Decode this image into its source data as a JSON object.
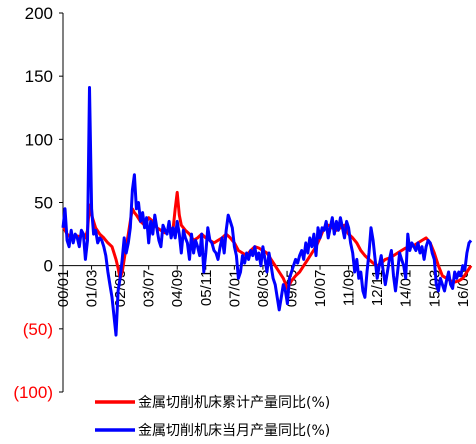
{
  "chart_data": {
    "type": "line",
    "title": "",
    "xlabel": "",
    "ylabel": "",
    "ylim": [
      -100,
      200
    ],
    "yticks": [
      {
        "value": 200,
        "label": "200"
      },
      {
        "value": 150,
        "label": "150"
      },
      {
        "value": 100,
        "label": "100"
      },
      {
        "value": 50,
        "label": "50"
      },
      {
        "value": 0,
        "label": "0"
      },
      {
        "value": -50,
        "label": "(50)"
      },
      {
        "value": -100,
        "label": "(100)"
      }
    ],
    "xticks": [
      "00/01",
      "01/03",
      "02/05",
      "03/07",
      "04/09",
      "05/11",
      "07/01",
      "08/03",
      "09/05",
      "10/07",
      "11/09",
      "12/11",
      "14/01",
      "15/03",
      "16/05"
    ],
    "xtick_index": [
      0,
      14,
      28,
      42,
      56,
      70,
      84,
      98,
      112,
      126,
      140,
      154,
      168,
      182,
      196
    ],
    "colors": {
      "negative_tick": "#ff0000",
      "positive_tick": "#000000"
    },
    "series": [
      {
        "name": "金属切削机床累计产量同比(%)",
        "color": "#ff0000",
        "points": [
          [
            0,
            32
          ],
          [
            1,
            28
          ],
          [
            2,
            25
          ],
          [
            4,
            22
          ],
          [
            6,
            24
          ],
          [
            8,
            23
          ],
          [
            10,
            25
          ],
          [
            11,
            22
          ],
          [
            12,
            28
          ],
          [
            13,
            48
          ],
          [
            14,
            40
          ],
          [
            15,
            35
          ],
          [
            16,
            30
          ],
          [
            18,
            25
          ],
          [
            20,
            22
          ],
          [
            22,
            18
          ],
          [
            24,
            15
          ],
          [
            25,
            10
          ],
          [
            26,
            5
          ],
          [
            27,
            -2
          ],
          [
            28,
            -10
          ],
          [
            29,
            -5
          ],
          [
            30,
            5
          ],
          [
            31,
            15
          ],
          [
            32,
            25
          ],
          [
            33,
            35
          ],
          [
            34,
            45
          ],
          [
            35,
            42
          ],
          [
            36,
            40
          ],
          [
            38,
            35
          ],
          [
            40,
            32
          ],
          [
            42,
            38
          ],
          [
            44,
            35
          ],
          [
            46,
            30
          ],
          [
            48,
            28
          ],
          [
            50,
            26
          ],
          [
            52,
            28
          ],
          [
            54,
            30
          ],
          [
            55,
            45
          ],
          [
            56,
            58
          ],
          [
            57,
            40
          ],
          [
            58,
            32
          ],
          [
            60,
            28
          ],
          [
            62,
            25
          ],
          [
            64,
            20
          ],
          [
            66,
            22
          ],
          [
            68,
            25
          ],
          [
            70,
            22
          ],
          [
            72,
            20
          ],
          [
            74,
            18
          ],
          [
            76,
            20
          ],
          [
            78,
            22
          ],
          [
            80,
            25
          ],
          [
            82,
            22
          ],
          [
            84,
            18
          ],
          [
            86,
            12
          ],
          [
            88,
            10
          ],
          [
            90,
            8
          ],
          [
            92,
            12
          ],
          [
            94,
            15
          ],
          [
            96,
            14
          ],
          [
            98,
            12
          ],
          [
            100,
            10
          ],
          [
            102,
            5
          ],
          [
            104,
            0
          ],
          [
            106,
            -5
          ],
          [
            108,
            -10
          ],
          [
            110,
            -18
          ],
          [
            112,
            -12
          ],
          [
            114,
            -8
          ],
          [
            116,
            -5
          ],
          [
            118,
            0
          ],
          [
            120,
            5
          ],
          [
            122,
            10
          ],
          [
            124,
            15
          ],
          [
            126,
            22
          ],
          [
            128,
            30
          ],
          [
            130,
            32
          ],
          [
            132,
            30
          ],
          [
            134,
            28
          ],
          [
            136,
            30
          ],
          [
            138,
            32
          ],
          [
            140,
            25
          ],
          [
            142,
            22
          ],
          [
            144,
            18
          ],
          [
            146,
            12
          ],
          [
            148,
            8
          ],
          [
            150,
            5
          ],
          [
            152,
            2
          ],
          [
            154,
            0
          ],
          [
            156,
            2
          ],
          [
            158,
            5
          ],
          [
            160,
            6
          ],
          [
            162,
            8
          ],
          [
            164,
            10
          ],
          [
            166,
            12
          ],
          [
            168,
            14
          ],
          [
            170,
            15
          ],
          [
            172,
            16
          ],
          [
            174,
            18
          ],
          [
            176,
            20
          ],
          [
            178,
            22
          ],
          [
            180,
            18
          ],
          [
            182,
            10
          ],
          [
            184,
            0
          ],
          [
            186,
            -8
          ],
          [
            188,
            -10
          ],
          [
            190,
            -12
          ],
          [
            192,
            -13
          ],
          [
            194,
            -12
          ],
          [
            196,
            -10
          ],
          [
            198,
            -5
          ],
          [
            200,
            0
          ]
        ]
      },
      {
        "name": "金属切削机床当月产量同比(%)",
        "color": "#0000ff",
        "points": [
          [
            0,
            30
          ],
          [
            1,
            45
          ],
          [
            2,
            20
          ],
          [
            3,
            15
          ],
          [
            4,
            28
          ],
          [
            5,
            18
          ],
          [
            6,
            25
          ],
          [
            7,
            22
          ],
          [
            8,
            15
          ],
          [
            9,
            28
          ],
          [
            10,
            25
          ],
          [
            11,
            5
          ],
          [
            12,
            20
          ],
          [
            13,
            141
          ],
          [
            14,
            45
          ],
          [
            15,
            25
          ],
          [
            16,
            28
          ],
          [
            17,
            18
          ],
          [
            18,
            22
          ],
          [
            19,
            20
          ],
          [
            20,
            15
          ],
          [
            21,
            8
          ],
          [
            22,
            -5
          ],
          [
            23,
            -15
          ],
          [
            24,
            -25
          ],
          [
            25,
            -40
          ],
          [
            26,
            -55
          ],
          [
            27,
            -20
          ],
          [
            28,
            -10
          ],
          [
            29,
            5
          ],
          [
            30,
            22
          ],
          [
            31,
            10
          ],
          [
            32,
            18
          ],
          [
            33,
            30
          ],
          [
            34,
            60
          ],
          [
            35,
            72
          ],
          [
            36,
            45
          ],
          [
            37,
            50
          ],
          [
            38,
            35
          ],
          [
            39,
            42
          ],
          [
            40,
            30
          ],
          [
            41,
            38
          ],
          [
            42,
            18
          ],
          [
            43,
            35
          ],
          [
            44,
            25
          ],
          [
            45,
            40
          ],
          [
            46,
            30
          ],
          [
            47,
            20
          ],
          [
            48,
            15
          ],
          [
            49,
            32
          ],
          [
            50,
            28
          ],
          [
            51,
            25
          ],
          [
            52,
            35
          ],
          [
            53,
            22
          ],
          [
            54,
            30
          ],
          [
            55,
            22
          ],
          [
            56,
            35
          ],
          [
            57,
            25
          ],
          [
            58,
            10
          ],
          [
            59,
            28
          ],
          [
            60,
            22
          ],
          [
            61,
            18
          ],
          [
            62,
            5
          ],
          [
            63,
            25
          ],
          [
            64,
            10
          ],
          [
            65,
            20
          ],
          [
            66,
            15
          ],
          [
            67,
            8
          ],
          [
            68,
            25
          ],
          [
            69,
            -5
          ],
          [
            70,
            10
          ],
          [
            71,
            30
          ],
          [
            72,
            20
          ],
          [
            73,
            18
          ],
          [
            74,
            12
          ],
          [
            75,
            10
          ],
          [
            76,
            5
          ],
          [
            77,
            15
          ],
          [
            78,
            22
          ],
          [
            79,
            10
          ],
          [
            80,
            28
          ],
          [
            81,
            40
          ],
          [
            82,
            35
          ],
          [
            83,
            30
          ],
          [
            84,
            15
          ],
          [
            85,
            8
          ],
          [
            86,
            -10
          ],
          [
            87,
            -5
          ],
          [
            88,
            8
          ],
          [
            89,
            2
          ],
          [
            90,
            10
          ],
          [
            91,
            5
          ],
          [
            92,
            12
          ],
          [
            93,
            8
          ],
          [
            94,
            15
          ],
          [
            95,
            5
          ],
          [
            96,
            10
          ],
          [
            97,
            0
          ],
          [
            98,
            15
          ],
          [
            99,
            5
          ],
          [
            100,
            -5
          ],
          [
            101,
            10
          ],
          [
            102,
            0
          ],
          [
            103,
            -10
          ],
          [
            104,
            -15
          ],
          [
            105,
            -25
          ],
          [
            106,
            -35
          ],
          [
            107,
            -25
          ],
          [
            108,
            -15
          ],
          [
            109,
            -20
          ],
          [
            110,
            -30
          ],
          [
            111,
            -10
          ],
          [
            112,
            -5
          ],
          [
            113,
            0
          ],
          [
            114,
            5
          ],
          [
            115,
            2
          ],
          [
            116,
            8
          ],
          [
            117,
            12
          ],
          [
            118,
            5
          ],
          [
            119,
            18
          ],
          [
            120,
            10
          ],
          [
            121,
            22
          ],
          [
            122,
            15
          ],
          [
            123,
            25
          ],
          [
            124,
            8
          ],
          [
            125,
            30
          ],
          [
            126,
            22
          ],
          [
            127,
            30
          ],
          [
            128,
            28
          ],
          [
            129,
            35
          ],
          [
            130,
            22
          ],
          [
            131,
            30
          ],
          [
            132,
            38
          ],
          [
            133,
            25
          ],
          [
            134,
            35
          ],
          [
            135,
            28
          ],
          [
            136,
            38
          ],
          [
            137,
            30
          ],
          [
            138,
            22
          ],
          [
            139,
            35
          ],
          [
            140,
            30
          ],
          [
            141,
            18
          ],
          [
            142,
            10
          ],
          [
            143,
            -5
          ],
          [
            144,
            5
          ],
          [
            145,
            -10
          ],
          [
            146,
            -5
          ],
          [
            147,
            -20
          ],
          [
            148,
            -25
          ],
          [
            149,
            -5
          ],
          [
            150,
            10
          ],
          [
            151,
            30
          ],
          [
            152,
            20
          ],
          [
            153,
            5
          ],
          [
            154,
            -10
          ],
          [
            155,
            0
          ],
          [
            156,
            8
          ],
          [
            157,
            -5
          ],
          [
            158,
            -15
          ],
          [
            159,
            -5
          ],
          [
            160,
            5
          ],
          [
            161,
            12
          ],
          [
            162,
            -8
          ],
          [
            163,
            -20
          ],
          [
            164,
            -5
          ],
          [
            165,
            10
          ],
          [
            166,
            5
          ],
          [
            167,
            0
          ],
          [
            168,
            -10
          ],
          [
            169,
            25
          ],
          [
            170,
            12
          ],
          [
            171,
            18
          ],
          [
            172,
            15
          ],
          [
            173,
            12
          ],
          [
            174,
            18
          ],
          [
            175,
            10
          ],
          [
            176,
            15
          ],
          [
            177,
            5
          ],
          [
            178,
            15
          ],
          [
            179,
            20
          ],
          [
            180,
            18
          ],
          [
            181,
            10
          ],
          [
            182,
            5
          ],
          [
            183,
            -15
          ],
          [
            184,
            -20
          ],
          [
            185,
            -10
          ],
          [
            186,
            -15
          ],
          [
            187,
            -20
          ],
          [
            188,
            -12
          ],
          [
            189,
            -5
          ],
          [
            190,
            -15
          ],
          [
            191,
            -18
          ],
          [
            192,
            -5
          ],
          [
            193,
            -10
          ],
          [
            194,
            -5
          ],
          [
            195,
            -8
          ],
          [
            196,
            0
          ],
          [
            197,
            -3
          ],
          [
            198,
            10
          ],
          [
            199,
            18
          ],
          [
            200,
            20
          ]
        ]
      }
    ]
  }
}
